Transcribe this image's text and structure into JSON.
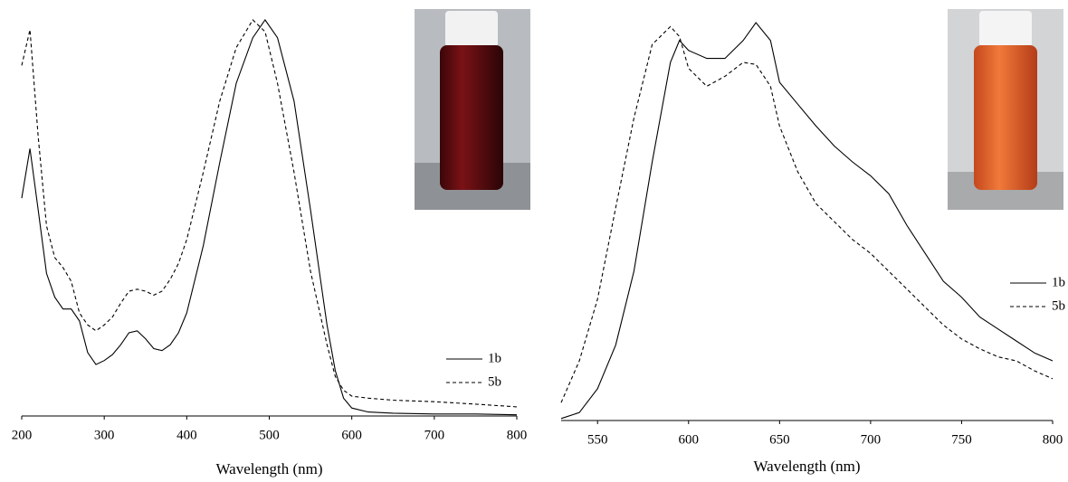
{
  "chart_data": [
    {
      "type": "line",
      "xlabel": "Wavelength (nm)",
      "x": [
        200,
        210,
        220,
        230,
        240,
        250,
        260,
        270,
        280,
        290,
        300,
        310,
        320,
        330,
        340,
        350,
        360,
        370,
        380,
        390,
        400,
        420,
        440,
        460,
        480,
        495,
        510,
        530,
        550,
        570,
        580,
        590,
        600,
        620,
        650,
        700,
        750,
        800
      ],
      "series": [
        {
          "name": "1b",
          "color": "#000000",
          "linestyle": "solid",
          "values": [
            0.55,
            0.675,
            0.52,
            0.36,
            0.3,
            0.27,
            0.27,
            0.24,
            0.16,
            0.13,
            0.14,
            0.155,
            0.18,
            0.21,
            0.215,
            0.195,
            0.17,
            0.165,
            0.18,
            0.21,
            0.26,
            0.43,
            0.64,
            0.84,
            0.955,
            1.0,
            0.955,
            0.795,
            0.52,
            0.23,
            0.115,
            0.045,
            0.02,
            0.01,
            0.007,
            0.005,
            0.005,
            0.003
          ]
        },
        {
          "name": "5b",
          "color": "#000000",
          "linestyle": "dashed",
          "values": [
            0.885,
            0.975,
            0.705,
            0.48,
            0.4,
            0.375,
            0.34,
            0.26,
            0.23,
            0.215,
            0.23,
            0.25,
            0.285,
            0.315,
            0.32,
            0.315,
            0.305,
            0.315,
            0.345,
            0.385,
            0.445,
            0.615,
            0.795,
            0.93,
            1.0,
            0.97,
            0.84,
            0.615,
            0.365,
            0.18,
            0.1,
            0.065,
            0.05,
            0.045,
            0.04,
            0.036,
            0.03,
            0.023
          ]
        }
      ],
      "xlim": [
        200,
        800
      ],
      "xticks": [
        200,
        300,
        400,
        500,
        600,
        700,
        800
      ],
      "ylim": [
        0,
        1
      ]
    },
    {
      "type": "line",
      "xlabel": "Wavelength (nm)",
      "x": [
        530,
        540,
        550,
        560,
        570,
        580,
        590,
        595,
        600,
        610,
        620,
        630,
        637,
        645,
        650,
        660,
        670,
        680,
        690,
        700,
        710,
        720,
        730,
        740,
        750,
        760,
        770,
        780,
        790,
        800
      ],
      "series": [
        {
          "name": "1b",
          "color": "#000000",
          "linestyle": "solid",
          "values": [
            0.005,
            0.02,
            0.08,
            0.19,
            0.375,
            0.65,
            0.9,
            0.955,
            0.93,
            0.91,
            0.91,
            0.955,
            1.0,
            0.955,
            0.85,
            0.795,
            0.74,
            0.69,
            0.65,
            0.615,
            0.57,
            0.49,
            0.42,
            0.35,
            0.31,
            0.26,
            0.23,
            0.2,
            0.17,
            0.15
          ]
        },
        {
          "name": "5b",
          "color": "#000000",
          "linestyle": "dashed",
          "values": [
            0.045,
            0.15,
            0.305,
            0.535,
            0.76,
            0.945,
            0.99,
            0.965,
            0.885,
            0.84,
            0.865,
            0.9,
            0.895,
            0.84,
            0.74,
            0.625,
            0.545,
            0.5,
            0.455,
            0.42,
            0.375,
            0.33,
            0.285,
            0.24,
            0.205,
            0.18,
            0.16,
            0.15,
            0.125,
            0.105
          ]
        }
      ],
      "xlim": [
        530,
        800
      ],
      "xticks": [
        550,
        600,
        650,
        700,
        750,
        800
      ],
      "ylim": [
        0,
        1
      ]
    }
  ]
}
